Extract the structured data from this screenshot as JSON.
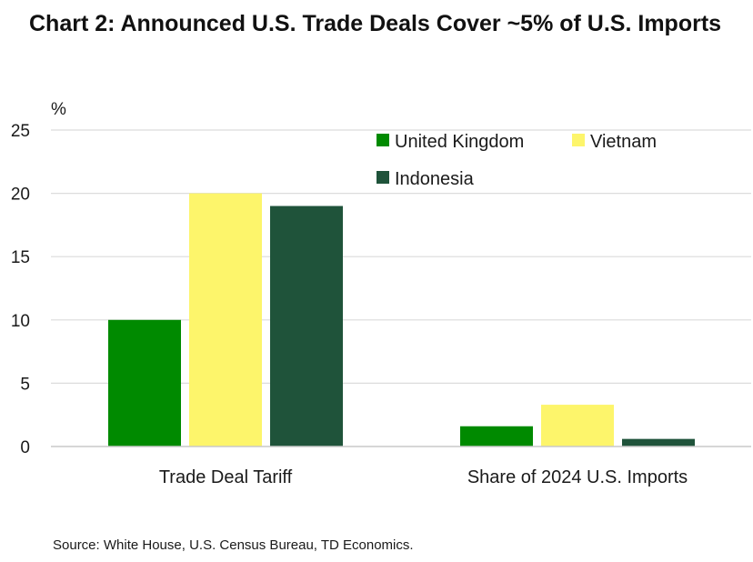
{
  "title": "Chart 2: Announced U.S. Trade Deals Cover ~5% of U.S. Imports",
  "source": "Source: White House, U.S. Census Bureau, TD Economics.",
  "chart_data": {
    "type": "bar",
    "title": "Chart 2: Announced U.S. Trade Deals Cover ~5% of U.S. Imports",
    "ylabel": "%",
    "xlabel": "",
    "ylim": [
      0,
      25
    ],
    "yticks": [
      "0",
      "5",
      "10",
      "15",
      "20",
      "25"
    ],
    "grid": true,
    "legend_position": "top-right",
    "categories": [
      "Trade Deal Tariff",
      "Share of 2024 U.S. Imports"
    ],
    "series": [
      {
        "name": "United Kingdom",
        "color": "#008a00",
        "values": [
          10,
          1.6
        ]
      },
      {
        "name": "Vietnam",
        "color": "#fdf56b",
        "values": [
          20,
          3.3
        ]
      },
      {
        "name": "Indonesia",
        "color": "#1f533a",
        "values": [
          19,
          0.6
        ]
      }
    ]
  }
}
